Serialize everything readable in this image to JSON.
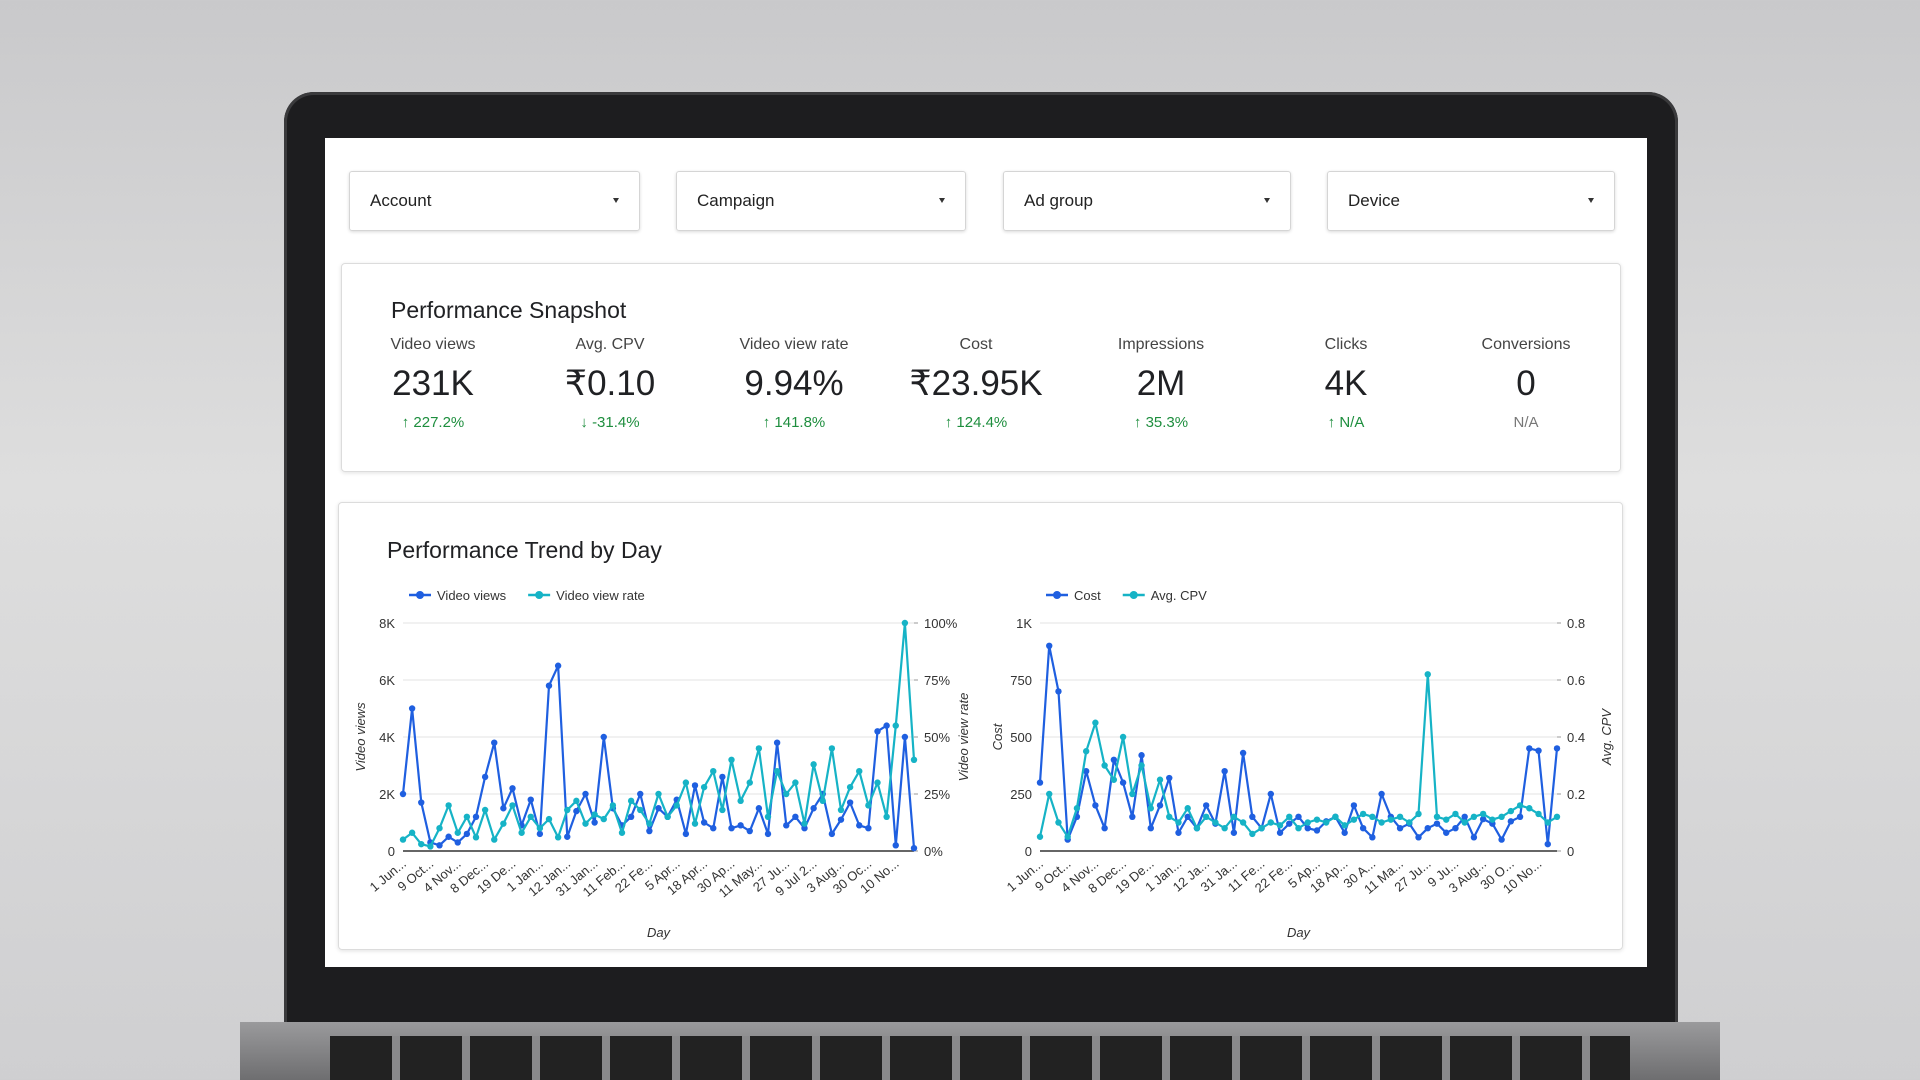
{
  "filters": [
    "Account",
    "Campaign",
    "Ad group",
    "Device"
  ],
  "snapshot": {
    "title": "Performance Snapshot",
    "metrics": [
      {
        "label": "Video views",
        "value": "231K",
        "change": "227.2%"
      },
      {
        "label": "Avg. CPV",
        "value": "₹0.10",
        "change": "-31.4%"
      },
      {
        "label": "Video view rate",
        "value": "9.94%",
        "change": "141.8%"
      },
      {
        "label": "Cost",
        "value": "₹23.95K",
        "change": "124.4%"
      },
      {
        "label": "Impressions",
        "value": "2M",
        "change": "35.3%"
      },
      {
        "label": "Clicks",
        "value": "4K",
        "change": "N/A"
      },
      {
        "label": "Conversions",
        "value": "0",
        "change": "N/A"
      }
    ]
  },
  "trend": {
    "title": "Performance Trend by Day"
  },
  "chart_data": [
    {
      "type": "line",
      "x_label": "Day",
      "y_label": "Video views",
      "y2_label": "Video view rate",
      "legend": "top-left",
      "grid": true,
      "categories": [
        "1 Jun...",
        null,
        null,
        "9 Oct...",
        null,
        null,
        "4 Nov...",
        null,
        null,
        "8 Dec...",
        null,
        null,
        "19 De...",
        null,
        null,
        "1 Jan...",
        null,
        null,
        "12 Jan...",
        null,
        null,
        "31 Jan...",
        null,
        null,
        "11 Feb...",
        null,
        null,
        "22 Fe...",
        null,
        null,
        "5 Apr...",
        null,
        null,
        "18 Apr...",
        null,
        null,
        "30 Ap...",
        null,
        null,
        "11 May...",
        null,
        null,
        "27 Ju...",
        null,
        null,
        "9 Jul 2...",
        null,
        null,
        "3 Aug...",
        null,
        null,
        "30 Oc...",
        null,
        null,
        "10 No...",
        null,
        null
      ],
      "ylim": [
        0,
        8000
      ],
      "yticks": [
        0,
        {
          "value": 2000,
          "label": "2K"
        },
        {
          "value": 4000,
          "label": "4K"
        },
        {
          "value": 6000,
          "label": "6K"
        },
        {
          "value": 8000,
          "label": "8K"
        }
      ],
      "y2lim": [
        0,
        100
      ],
      "y2ticks": [
        {
          "value": 0,
          "label": "0%"
        },
        {
          "value": 25,
          "label": "25%"
        },
        {
          "value": 50,
          "label": "50%"
        },
        {
          "value": 75,
          "label": "75%"
        },
        {
          "value": 100,
          "label": "100%"
        }
      ],
      "series": [
        {
          "name": "Video views",
          "color": "#1f5fe0",
          "axis": "y",
          "values": [
            2000,
            5000,
            1700,
            300,
            200,
            500,
            300,
            600,
            1200,
            2600,
            3800,
            1500,
            2200,
            900,
            1800,
            600,
            5800,
            6500,
            500,
            1400,
            2000,
            1000,
            4000,
            1500,
            900,
            1200,
            2000,
            700,
            1500,
            1200,
            1800,
            600,
            2300,
            1000,
            800,
            2600,
            800,
            900,
            700,
            1500,
            600,
            3800,
            900,
            1200,
            800,
            1500,
            2000,
            600,
            1100,
            1700,
            900,
            800,
            4200,
            4400,
            200,
            4000,
            100
          ]
        },
        {
          "name": "Video view rate",
          "color": "#16b3c6",
          "axis": "y2",
          "values": [
            5,
            8,
            3,
            2,
            10,
            20,
            8,
            15,
            6,
            18,
            5,
            12,
            20,
            8,
            15,
            10,
            14,
            6,
            18,
            22,
            12,
            16,
            14,
            20,
            8,
            22,
            18,
            12,
            25,
            15,
            20,
            30,
            12,
            28,
            35,
            18,
            40,
            22,
            30,
            45,
            15,
            35,
            25,
            30,
            12,
            38,
            22,
            45,
            18,
            28,
            35,
            20,
            30,
            15,
            55,
            100,
            40
          ]
        }
      ]
    },
    {
      "type": "line",
      "x_label": "Day",
      "y_label": "Cost",
      "y2_label": "Avg. CPV",
      "legend": "top-left",
      "grid": true,
      "categories": [
        "1 Jun...",
        null,
        null,
        "9 Oct...",
        null,
        null,
        "4 Nov...",
        null,
        null,
        "8 Dec...",
        null,
        null,
        "19 De...",
        null,
        null,
        "1 Jan...",
        null,
        null,
        "12 Ja...",
        null,
        null,
        "31 Ja...",
        null,
        null,
        "11 Fe...",
        null,
        null,
        "22 Fe...",
        null,
        null,
        "5 Ap...",
        null,
        null,
        "18 Ap...",
        null,
        null,
        "30 A...",
        null,
        null,
        "11 Ma...",
        null,
        null,
        "27 Ju...",
        null,
        null,
        "9 Ju...",
        null,
        null,
        "3 Aug...",
        null,
        null,
        "30 O...",
        null,
        null,
        "10 No...",
        null,
        null
      ],
      "ylim": [
        0,
        1000
      ],
      "yticks": [
        0,
        250,
        500,
        750,
        {
          "value": 1000,
          "label": "1K"
        }
      ],
      "y2lim": [
        0,
        0.8
      ],
      "y2ticks": [
        0,
        0.2,
        0.4,
        0.6,
        0.8
      ],
      "series": [
        {
          "name": "Cost",
          "color": "#1f5fe0",
          "axis": "y",
          "values": [
            300,
            900,
            700,
            50,
            150,
            350,
            200,
            100,
            400,
            300,
            150,
            420,
            100,
            200,
            320,
            80,
            150,
            100,
            200,
            120,
            350,
            80,
            430,
            150,
            100,
            250,
            80,
            120,
            150,
            100,
            90,
            130,
            150,
            80,
            200,
            100,
            60,
            250,
            150,
            100,
            120,
            60,
            100,
            120,
            80,
            100,
            150,
            60,
            140,
            120,
            50,
            130,
            150,
            450,
            440,
            30,
            450
          ]
        },
        {
          "name": "Avg. CPV",
          "color": "#16b3c6",
          "axis": "y2",
          "values": [
            0.05,
            0.2,
            0.1,
            0.05,
            0.15,
            0.35,
            0.45,
            0.3,
            0.25,
            0.4,
            0.2,
            0.3,
            0.15,
            0.25,
            0.12,
            0.1,
            0.15,
            0.08,
            0.12,
            0.1,
            0.08,
            0.12,
            0.1,
            0.06,
            0.08,
            0.1,
            0.09,
            0.12,
            0.08,
            0.1,
            0.11,
            0.1,
            0.12,
            0.09,
            0.11,
            0.13,
            0.12,
            0.1,
            0.11,
            0.12,
            0.1,
            0.13,
            0.62,
            0.12,
            0.11,
            0.13,
            0.1,
            0.12,
            0.13,
            0.11,
            0.12,
            0.14,
            0.16,
            0.15,
            0.13,
            0.1,
            0.12
          ]
        }
      ]
    }
  ]
}
